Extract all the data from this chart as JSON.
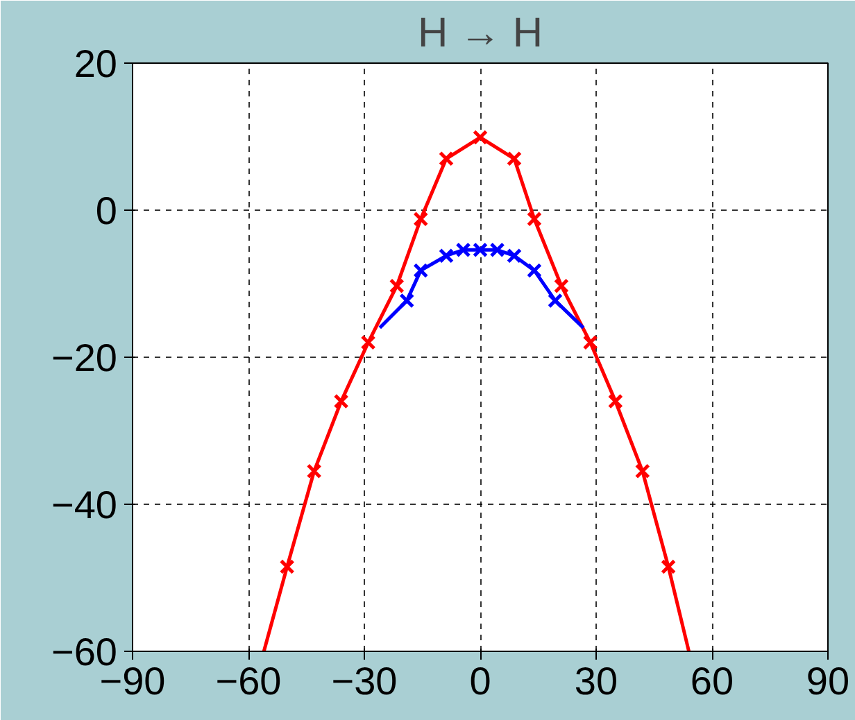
{
  "chart_data": {
    "type": "line",
    "title": "H → H",
    "xlim": [
      -90,
      90
    ],
    "xticks": [
      -90,
      -60,
      -30,
      0,
      30,
      60,
      90
    ],
    "ylim": [
      -60,
      20
    ],
    "yticks": [
      -60,
      -40,
      -20,
      0,
      20
    ],
    "grid": true,
    "line_style": "solid",
    "series": [
      {
        "color": "#ff0000",
        "marker": "none",
        "x": [
          -56,
          -50,
          -43,
          -36,
          -29,
          -21.6,
          -15.4,
          -8.8,
          0,
          8.8,
          14,
          21,
          28.5,
          35,
          42,
          48.7,
          54
        ],
        "values": [
          -60,
          -48.5,
          -35.5,
          -26,
          -18,
          -10.3,
          -1.2,
          7,
          9.9,
          7,
          -1.2,
          -10.3,
          -18,
          -26,
          -35.5,
          -48.5,
          -60
        ]
      },
      {
        "type": "scatter",
        "color": "#ff0000",
        "marker": "cross",
        "x": [
          -50,
          -43,
          -36,
          -29,
          -21.6,
          -15.4,
          -8.8,
          0,
          8.8,
          14,
          21,
          28.5,
          35,
          42,
          48.7
        ],
        "values": [
          -48.5,
          -35.5,
          -26,
          -18,
          -10.3,
          -1.2,
          7,
          9.9,
          7,
          -1.2,
          -10.3,
          -18,
          -26,
          -35.5,
          -48.5
        ]
      },
      {
        "color": "#0000ff",
        "marker": "none",
        "x": [
          -26,
          -19,
          -15.4,
          -8.8,
          -4.4,
          0,
          4.4,
          8.8,
          14,
          19.4,
          26.7
        ],
        "values": [
          -16,
          -12.3,
          -8.2,
          -6.2,
          -5.4,
          -5.4,
          -5.4,
          -6.2,
          -8.2,
          -12.3,
          -16
        ]
      },
      {
        "type": "scatter",
        "color": "#0000ff",
        "marker": "cross",
        "x": [
          -19,
          -15.4,
          -8.8,
          -4.4,
          0,
          4.4,
          8.8,
          14,
          19.4
        ],
        "values": [
          -12.3,
          -8.2,
          -6.2,
          -5.4,
          -5.4,
          -5.4,
          -6.2,
          -8.2,
          -12.3
        ]
      }
    ]
  }
}
